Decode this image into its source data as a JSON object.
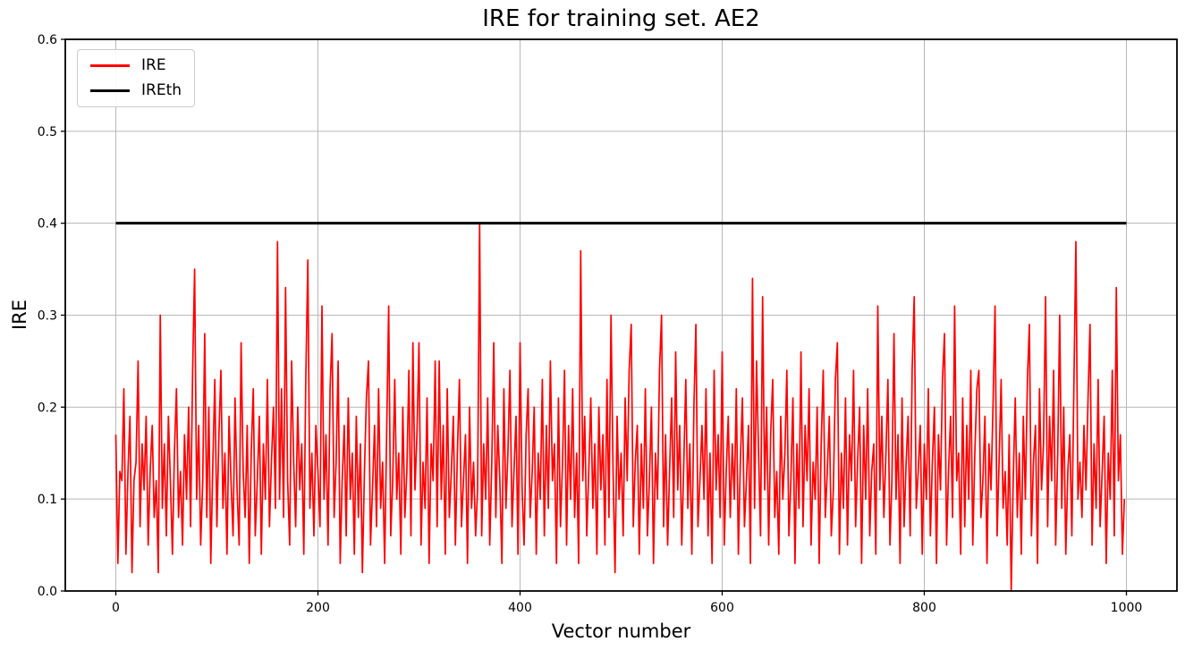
{
  "chart_data": {
    "type": "line",
    "title": "IRE for training set. AE2",
    "xlabel": "Vector number",
    "ylabel": "IRE",
    "xlim": [
      -50,
      1050
    ],
    "ylim": [
      0,
      0.6
    ],
    "xticks": [
      0,
      200,
      400,
      600,
      800,
      1000
    ],
    "yticks": [
      0.0,
      0.1,
      0.2,
      0.3,
      0.4,
      0.5,
      0.6
    ],
    "ytick_labels": [
      "0.0",
      "0.1",
      "0.2",
      "0.3",
      "0.4",
      "0.5",
      "0.6"
    ],
    "grid": true,
    "legend_position": "upper-left",
    "colors": {
      "ire": "#ff0000",
      "threshold": "#000000",
      "grid": "#b8b8b8",
      "spine": "#000000",
      "background": "#ffffff"
    },
    "legend": {
      "entries": [
        {
          "label": "IRE",
          "color": "#ff0000"
        },
        {
          "label": "IREth",
          "color": "#000000"
        }
      ]
    },
    "series": [
      {
        "name": "IRE",
        "color": "#ff0000",
        "line_width": 1.7,
        "x_start": 0,
        "x_step": 2,
        "values": [
          0.17,
          0.03,
          0.13,
          0.12,
          0.22,
          0.04,
          0.13,
          0.19,
          0.02,
          0.12,
          0.14,
          0.25,
          0.07,
          0.16,
          0.11,
          0.19,
          0.05,
          0.13,
          0.18,
          0.08,
          0.12,
          0.02,
          0.3,
          0.09,
          0.16,
          0.06,
          0.19,
          0.12,
          0.04,
          0.15,
          0.22,
          0.08,
          0.13,
          0.05,
          0.17,
          0.1,
          0.2,
          0.07,
          0.24,
          0.35,
          0.1,
          0.18,
          0.05,
          0.12,
          0.28,
          0.08,
          0.2,
          0.03,
          0.14,
          0.23,
          0.07,
          0.17,
          0.24,
          0.09,
          0.15,
          0.04,
          0.19,
          0.12,
          0.06,
          0.21,
          0.11,
          0.05,
          0.27,
          0.13,
          0.08,
          0.18,
          0.03,
          0.15,
          0.22,
          0.06,
          0.12,
          0.19,
          0.04,
          0.16,
          0.1,
          0.23,
          0.07,
          0.14,
          0.2,
          0.09,
          0.38,
          0.1,
          0.22,
          0.08,
          0.33,
          0.12,
          0.05,
          0.25,
          0.14,
          0.07,
          0.2,
          0.11,
          0.16,
          0.04,
          0.23,
          0.36,
          0.09,
          0.15,
          0.06,
          0.18,
          0.13,
          0.07,
          0.31,
          0.1,
          0.17,
          0.05,
          0.22,
          0.28,
          0.08,
          0.14,
          0.25,
          0.03,
          0.12,
          0.18,
          0.06,
          0.21,
          0.1,
          0.15,
          0.04,
          0.19,
          0.08,
          0.16,
          0.02,
          0.13,
          0.21,
          0.25,
          0.05,
          0.11,
          0.18,
          0.07,
          0.22,
          0.09,
          0.14,
          0.03,
          0.17,
          0.31,
          0.06,
          0.12,
          0.23,
          0.1,
          0.15,
          0.04,
          0.2,
          0.08,
          0.13,
          0.24,
          0.06,
          0.27,
          0.11,
          0.17,
          0.27,
          0.05,
          0.14,
          0.09,
          0.21,
          0.03,
          0.16,
          0.12,
          0.25,
          0.07,
          0.25,
          0.1,
          0.18,
          0.04,
          0.22,
          0.08,
          0.13,
          0.19,
          0.05,
          0.15,
          0.23,
          0.07,
          0.12,
          0.17,
          0.03,
          0.2,
          0.09,
          0.14,
          0.06,
          0.11,
          0.4,
          0.06,
          0.16,
          0.1,
          0.21,
          0.05,
          0.14,
          0.27,
          0.08,
          0.18,
          0.12,
          0.03,
          0.22,
          0.09,
          0.15,
          0.24,
          0.07,
          0.13,
          0.19,
          0.04,
          0.27,
          0.11,
          0.05,
          0.17,
          0.22,
          0.08,
          0.13,
          0.2,
          0.04,
          0.15,
          0.1,
          0.23,
          0.06,
          0.18,
          0.09,
          0.25,
          0.12,
          0.16,
          0.03,
          0.21,
          0.07,
          0.14,
          0.24,
          0.05,
          0.18,
          0.1,
          0.22,
          0.08,
          0.15,
          0.03,
          0.37,
          0.12,
          0.19,
          0.06,
          0.13,
          0.21,
          0.09,
          0.16,
          0.04,
          0.2,
          0.11,
          0.17,
          0.05,
          0.23,
          0.08,
          0.3,
          0.13,
          0.02,
          0.19,
          0.1,
          0.15,
          0.06,
          0.21,
          0.12,
          0.24,
          0.29,
          0.07,
          0.14,
          0.18,
          0.04,
          0.16,
          0.09,
          0.22,
          0.06,
          0.12,
          0.2,
          0.03,
          0.15,
          0.1,
          0.24,
          0.3,
          0.07,
          0.17,
          0.05,
          0.13,
          0.21,
          0.08,
          0.26,
          0.11,
          0.18,
          0.05,
          0.14,
          0.23,
          0.09,
          0.16,
          0.04,
          0.2,
          0.29,
          0.07,
          0.12,
          0.18,
          0.1,
          0.22,
          0.06,
          0.15,
          0.03,
          0.24,
          0.11,
          0.17,
          0.08,
          0.26,
          0.05,
          0.13,
          0.19,
          0.08,
          0.16,
          0.1,
          0.22,
          0.04,
          0.14,
          0.21,
          0.07,
          0.12,
          0.18,
          0.03,
          0.34,
          0.09,
          0.25,
          0.15,
          0.06,
          0.32,
          0.11,
          0.2,
          0.05,
          0.17,
          0.23,
          0.08,
          0.13,
          0.04,
          0.19,
          0.1,
          0.15,
          0.24,
          0.06,
          0.12,
          0.21,
          0.03,
          0.16,
          0.09,
          0.26,
          0.07,
          0.18,
          0.12,
          0.22,
          0.05,
          0.14,
          0.1,
          0.2,
          0.03,
          0.16,
          0.24,
          0.08,
          0.13,
          0.19,
          0.06,
          0.11,
          0.23,
          0.27,
          0.04,
          0.15,
          0.09,
          0.21,
          0.05,
          0.17,
          0.12,
          0.24,
          0.07,
          0.14,
          0.2,
          0.03,
          0.18,
          0.1,
          0.22,
          0.06,
          0.13,
          0.16,
          0.04,
          0.31,
          0.11,
          0.19,
          0.08,
          0.15,
          0.23,
          0.05,
          0.12,
          0.28,
          0.1,
          0.17,
          0.03,
          0.21,
          0.07,
          0.14,
          0.19,
          0.06,
          0.24,
          0.32,
          0.09,
          0.13,
          0.18,
          0.04,
          0.16,
          0.1,
          0.22,
          0.06,
          0.14,
          0.2,
          0.03,
          0.17,
          0.11,
          0.23,
          0.28,
          0.05,
          0.13,
          0.19,
          0.08,
          0.31,
          0.12,
          0.15,
          0.04,
          0.21,
          0.07,
          0.18,
          0.1,
          0.24,
          0.05,
          0.15,
          0.22,
          0.24,
          0.08,
          0.12,
          0.19,
          0.03,
          0.16,
          0.11,
          0.2,
          0.31,
          0.06,
          0.14,
          0.23,
          0.09,
          0.13,
          0.05,
          0.17,
          0.0,
          0.12,
          0.21,
          0.08,
          0.15,
          0.04,
          0.19,
          0.1,
          0.23,
          0.29,
          0.06,
          0.14,
          0.18,
          0.03,
          0.22,
          0.11,
          0.16,
          0.32,
          0.07,
          0.19,
          0.12,
          0.24,
          0.05,
          0.15,
          0.3,
          0.09,
          0.2,
          0.04,
          0.13,
          0.17,
          0.06,
          0.22,
          0.38,
          0.1,
          0.14,
          0.08,
          0.18,
          0.11,
          0.21,
          0.29,
          0.05,
          0.16,
          0.09,
          0.23,
          0.07,
          0.13,
          0.19,
          0.03,
          0.15,
          0.1,
          0.24,
          0.06,
          0.33,
          0.12,
          0.17,
          0.04,
          0.1
        ]
      },
      {
        "name": "IREth",
        "color": "#000000",
        "line_width": 3,
        "type": "hline",
        "y": 0.4,
        "x_range": [
          0,
          1000
        ]
      }
    ]
  }
}
